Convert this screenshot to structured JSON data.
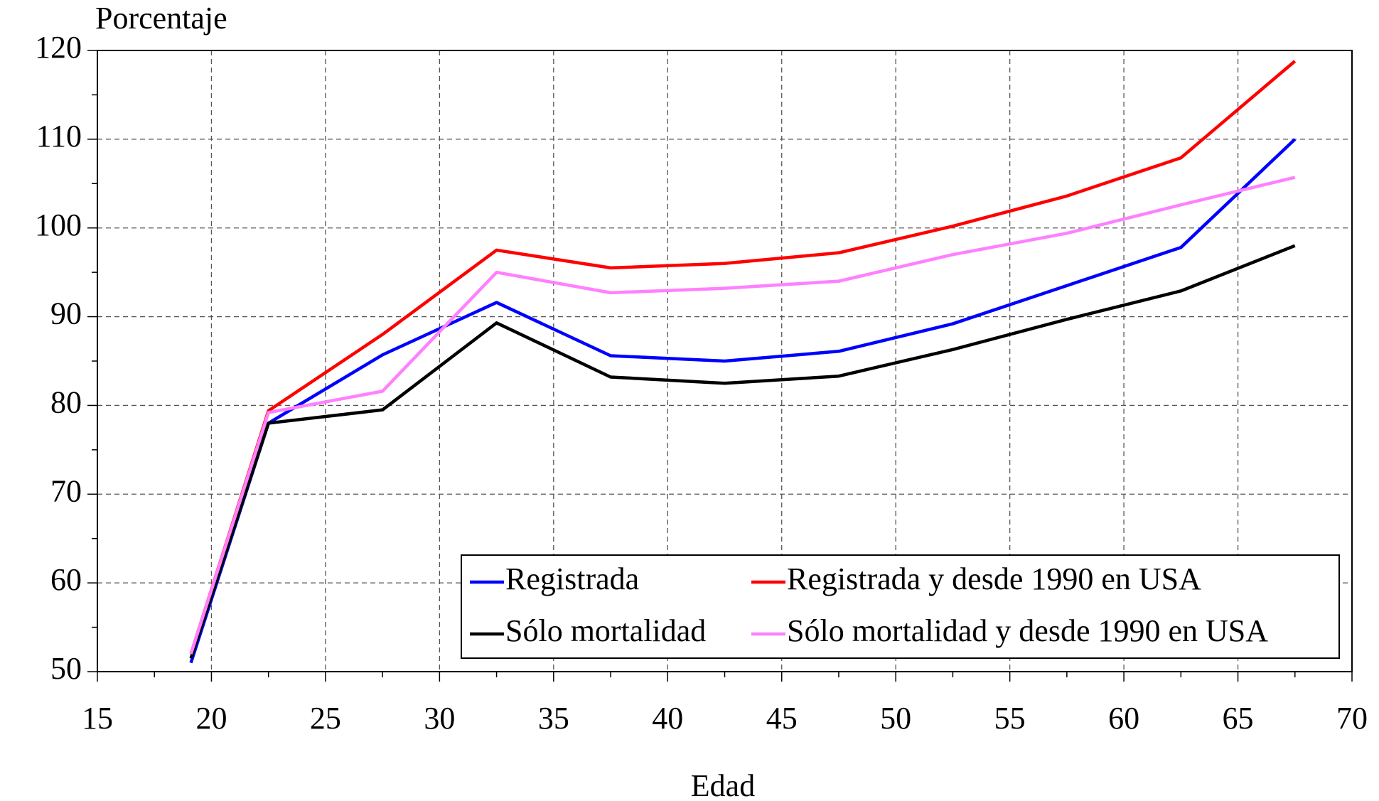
{
  "chart_data": {
    "type": "line",
    "y_label": "Porcentaje",
    "x_label": "Edad",
    "x": [
      19.1,
      22.5,
      27.5,
      32.5,
      37.5,
      42.5,
      47.5,
      52.5,
      57.5,
      62.5,
      67.5
    ],
    "series": [
      {
        "name": "Registrada",
        "color": "#0000ff",
        "values": [
          51,
          78,
          85.7,
          91.6,
          85.6,
          85,
          86.1,
          89.2,
          93.5,
          97.8,
          110
        ]
      },
      {
        "name": "Registrada y desde 1990 en USA",
        "color": "#ff0000",
        "values": [
          52,
          79.4,
          88,
          97.5,
          95.5,
          96,
          97.2,
          100.2,
          103.6,
          107.9,
          118.8
        ]
      },
      {
        "name": "Sólo mortalidad",
        "color": "#000000",
        "values": [
          51.5,
          78,
          79.5,
          89.3,
          83.2,
          82.5,
          83.3,
          86.3,
          89.7,
          92.9,
          98
        ]
      },
      {
        "name": "Sólo mortalidad y desde 1990 en USA",
        "color": "#ff80ff",
        "values": [
          52,
          79.2,
          81.6,
          95,
          92.7,
          93.2,
          94,
          97,
          99.4,
          102.6,
          105.7
        ]
      }
    ],
    "xlim": [
      15,
      70
    ],
    "xticks": [
      15,
      20,
      25,
      30,
      35,
      40,
      45,
      50,
      55,
      60,
      65,
      70
    ],
    "ylim": [
      50,
      120
    ],
    "yticks": [
      50,
      60,
      70,
      80,
      90,
      100,
      110,
      120
    ],
    "grid": true,
    "legend": "lower right"
  }
}
